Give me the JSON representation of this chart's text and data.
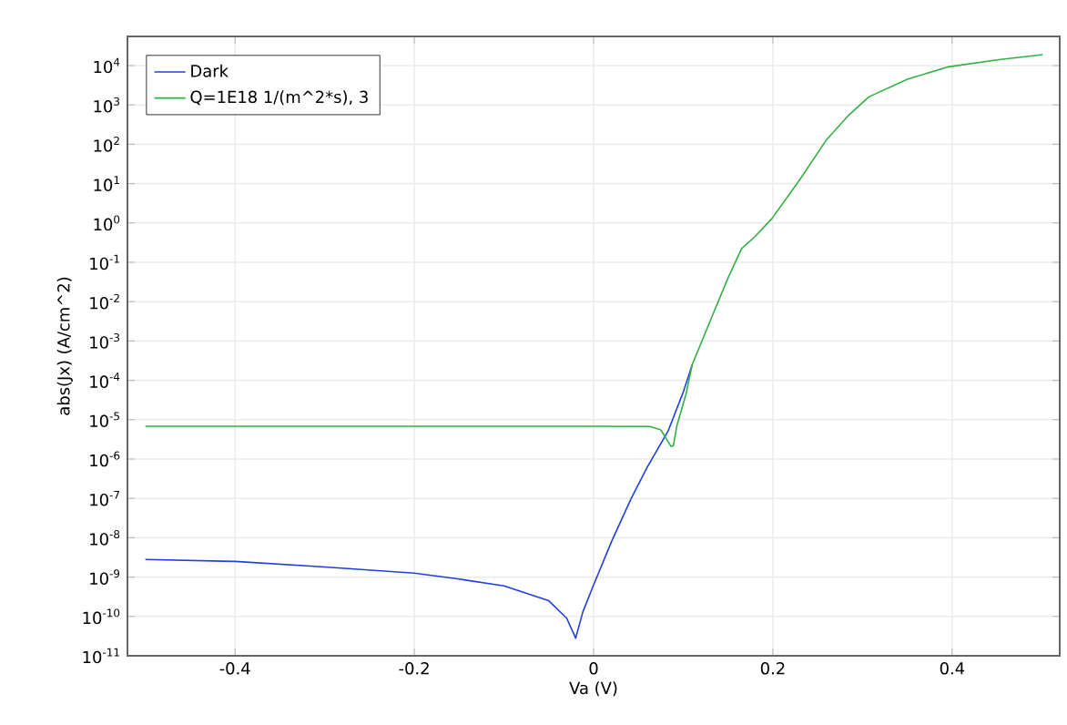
{
  "chart_data": {
    "type": "line",
    "xlabel": "Va (V)",
    "ylabel": "abs(Jx) (A/cm^2)",
    "log": "y",
    "grid": true,
    "legend": "top left",
    "marker": "none",
    "line_style": "solid",
    "xlim": [
      -0.52,
      0.52
    ],
    "ylim": [
      1e-11,
      55000
    ],
    "xticks": [
      -0.4,
      -0.2,
      0,
      0.2,
      0.4
    ],
    "yticks": [
      {
        "value": 1e-11,
        "label": "10$^{-11}$"
      },
      {
        "value": 1e-10,
        "label": "10$^{-10}$"
      },
      {
        "value": 1e-09,
        "label": "10$^{-9}$"
      },
      {
        "value": 1e-08,
        "label": "10$^{-8}$"
      },
      {
        "value": 1e-07,
        "label": "10$^{-7}$"
      },
      {
        "value": 1e-06,
        "label": "10$^{-6}$"
      },
      {
        "value": 1e-05,
        "label": "10$^{-5}$"
      },
      {
        "value": 0.0001,
        "label": "10$^{-4}$"
      },
      {
        "value": 0.001,
        "label": "10$^{-3}$"
      },
      {
        "value": 0.01,
        "label": "10$^{-2}$"
      },
      {
        "value": 0.1,
        "label": "10$^{-1}$"
      },
      {
        "value": 1,
        "label": "10$^{0}$"
      },
      {
        "value": 10,
        "label": "10$^{1}$"
      },
      {
        "value": 100,
        "label": "10$^{2}$"
      },
      {
        "value": 1000,
        "label": "10$^{3}$"
      },
      {
        "value": 10000,
        "label": "10$^{4}$"
      }
    ],
    "series": [
      {
        "name": "Dark",
        "color": "#1f3fe0",
        "x": [
          -0.5,
          -0.4,
          -0.3,
          -0.2,
          -0.15,
          -0.1,
          -0.05,
          -0.03,
          -0.02,
          -0.012,
          0,
          0.02,
          0.042,
          0.06,
          0.083,
          0.1,
          0.11
        ],
        "values": [
          2.8e-09,
          2.5e-09,
          1.8e-09,
          1.26e-09,
          8.9e-10,
          6e-10,
          2.5e-10,
          9e-11,
          2.8e-11,
          1.3e-10,
          6.3e-10,
          8e-09,
          1e-07,
          6.3e-07,
          5.1e-06,
          5e-05,
          0.00025
        ]
      },
      {
        "name": "Q=1E18 1/(m^2*s), 3",
        "color": "#33b044",
        "x": [
          -0.5,
          0,
          0.063,
          0.075,
          0.08,
          0.0864,
          0.089,
          0.093,
          0.103,
          0.11,
          0.13,
          0.15,
          0.165,
          0.18,
          0.199,
          0.23,
          0.26,
          0.285,
          0.307,
          0.35,
          0.396,
          0.45,
          0.501
        ],
        "values": [
          6.8e-06,
          6.8e-06,
          6.7e-06,
          5.5e-06,
          3.6e-06,
          2.1e-06,
          2.2e-06,
          7.2e-06,
          4.4e-05,
          0.00025,
          0.0032,
          0.04,
          0.22,
          0.45,
          1.3,
          12.6,
          132,
          560,
          1600,
          4500,
          9300,
          14000,
          19000
        ]
      }
    ]
  }
}
